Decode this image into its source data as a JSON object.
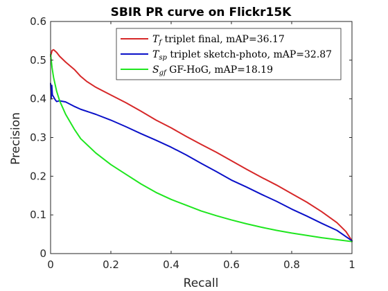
{
  "chart_data": {
    "type": "line",
    "title": "SBIR PR curve on Flickr15K",
    "xlabel": "Recall",
    "ylabel": "Precision",
    "xlim": [
      0,
      1
    ],
    "ylim": [
      0,
      0.6
    ],
    "xticks": [
      0,
      0.2,
      0.4,
      0.6,
      0.8,
      1
    ],
    "xtick_labels": [
      "0",
      "0.2",
      "0.4",
      "0.6",
      "0.8",
      "1"
    ],
    "yticks": [
      0,
      0.1,
      0.2,
      0.3,
      0.4,
      0.5,
      0.6
    ],
    "ytick_labels": [
      "0",
      "0.1",
      "0.2",
      "0.3",
      "0.4",
      "0.5",
      "0.6"
    ],
    "grid": false,
    "legend_position": "top-right",
    "series": [
      {
        "name": "T_f triplet final, mAP=36.17",
        "symbol": "T",
        "subscript": "f",
        "label_text": "triplet final, mAP=36.17",
        "color": "#d62728",
        "x": [
          0.0,
          0.005,
          0.01,
          0.02,
          0.03,
          0.05,
          0.08,
          0.1,
          0.12,
          0.15,
          0.2,
          0.25,
          0.3,
          0.35,
          0.4,
          0.45,
          0.5,
          0.55,
          0.6,
          0.65,
          0.7,
          0.75,
          0.8,
          0.85,
          0.9,
          0.95,
          0.98,
          1.0
        ],
        "y": [
          0.51,
          0.525,
          0.527,
          0.52,
          0.51,
          0.495,
          0.475,
          0.458,
          0.445,
          0.43,
          0.41,
          0.39,
          0.368,
          0.345,
          0.325,
          0.303,
          0.282,
          0.262,
          0.24,
          0.218,
          0.197,
          0.177,
          0.155,
          0.133,
          0.108,
          0.08,
          0.057,
          0.033
        ]
      },
      {
        "name": "T_sp triplet sketch-photo, mAP=32.87",
        "symbol": "T",
        "subscript": "sp",
        "label_text": "triplet sketch-photo, mAP=32.87",
        "color": "#0a10c8",
        "x": [
          0.0,
          0.002,
          0.004,
          0.006,
          0.01,
          0.015,
          0.02,
          0.03,
          0.05,
          0.08,
          0.1,
          0.15,
          0.2,
          0.25,
          0.3,
          0.35,
          0.4,
          0.45,
          0.5,
          0.55,
          0.6,
          0.65,
          0.7,
          0.75,
          0.8,
          0.85,
          0.9,
          0.95,
          1.0
        ],
        "y": [
          0.44,
          0.4,
          0.435,
          0.41,
          0.405,
          0.398,
          0.393,
          0.395,
          0.392,
          0.38,
          0.373,
          0.36,
          0.345,
          0.328,
          0.31,
          0.293,
          0.275,
          0.255,
          0.233,
          0.212,
          0.19,
          0.172,
          0.153,
          0.135,
          0.115,
          0.097,
          0.078,
          0.06,
          0.033
        ]
      },
      {
        "name": "S_gf GF-HoG, mAP=18.19",
        "symbol": "S",
        "subscript": "gf",
        "label_text": "GF-HoG, mAP=18.19",
        "color": "#1ee61e",
        "x": [
          0.0,
          0.005,
          0.01,
          0.02,
          0.03,
          0.05,
          0.08,
          0.1,
          0.15,
          0.2,
          0.25,
          0.3,
          0.35,
          0.4,
          0.45,
          0.5,
          0.55,
          0.6,
          0.65,
          0.7,
          0.75,
          0.8,
          0.85,
          0.9,
          0.95,
          1.0
        ],
        "y": [
          0.515,
          0.48,
          0.455,
          0.42,
          0.395,
          0.36,
          0.32,
          0.297,
          0.26,
          0.23,
          0.205,
          0.18,
          0.158,
          0.14,
          0.125,
          0.11,
          0.098,
          0.087,
          0.077,
          0.068,
          0.06,
          0.053,
          0.047,
          0.041,
          0.036,
          0.031
        ]
      }
    ]
  }
}
